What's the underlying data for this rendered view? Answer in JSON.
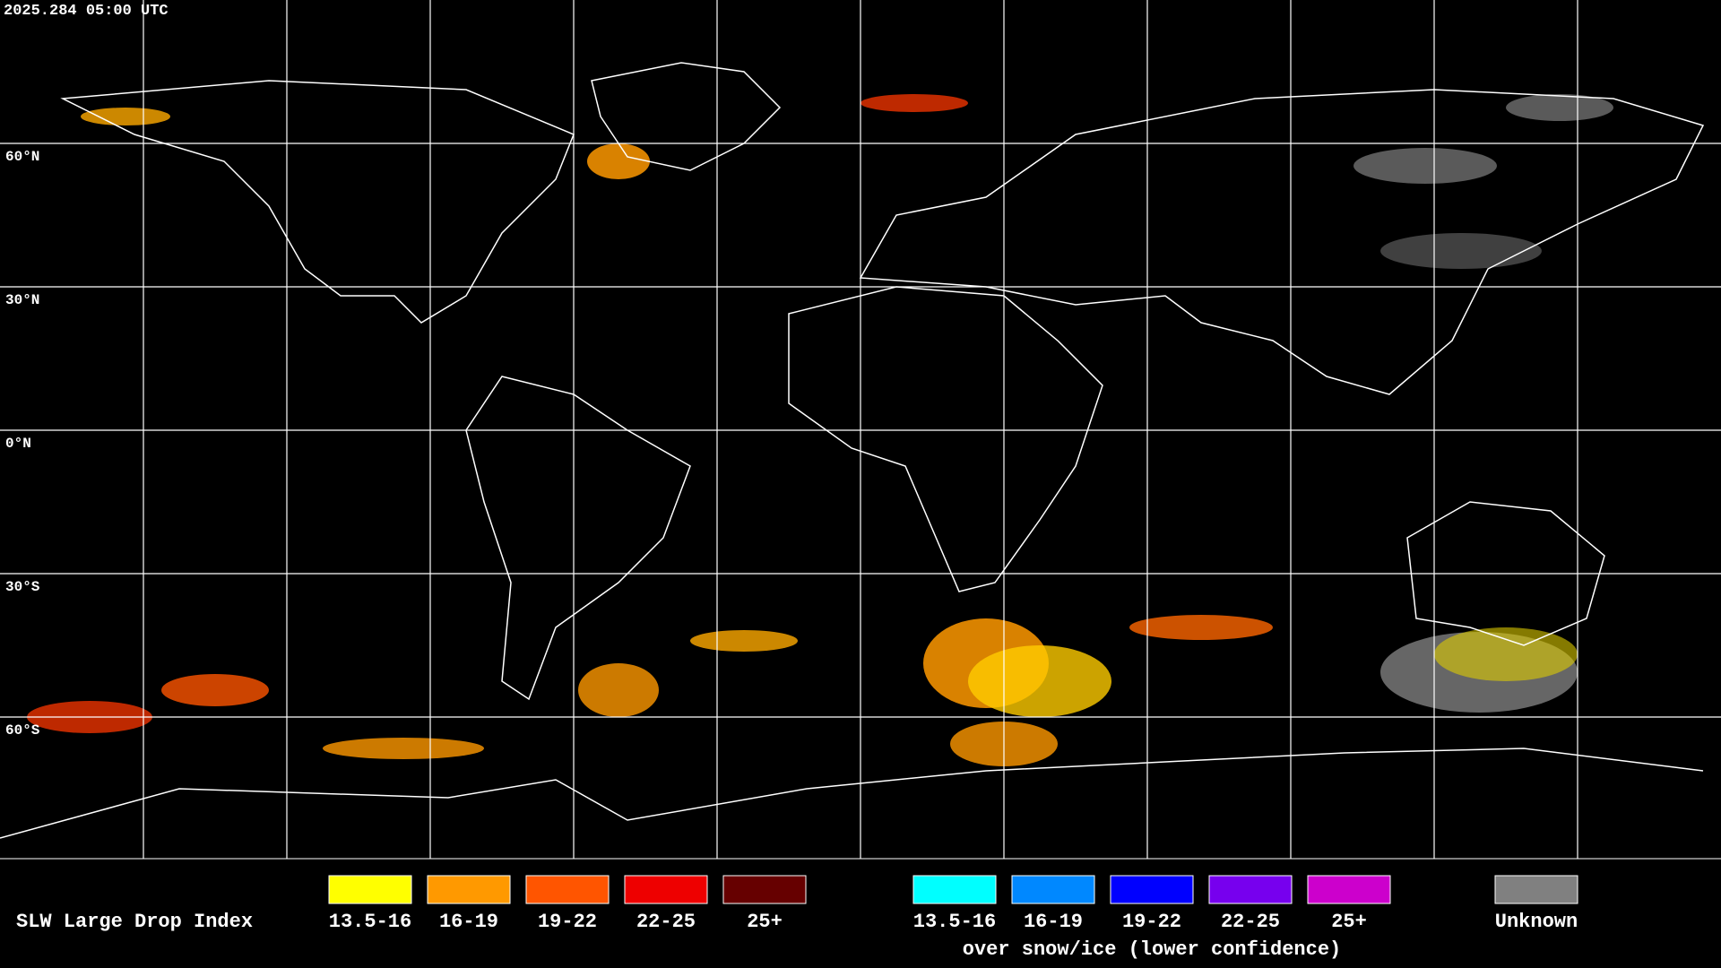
{
  "header": {
    "timestamp": "2025.284 05:00 UTC"
  },
  "map": {
    "lat_labels": [
      "60°N",
      "30°N",
      "0°N",
      "30°S",
      "60°S"
    ]
  },
  "legend": {
    "title": "SLW Large Drop Index",
    "groups": [
      {
        "items": [
          {
            "label": "13.5-16",
            "color": "#ffff00"
          },
          {
            "label": "16-19",
            "color": "#ff9900"
          },
          {
            "label": "19-22",
            "color": "#ff5500"
          },
          {
            "label": "22-25",
            "color": "#ee0000"
          },
          {
            "label": "25+",
            "color": "#660000"
          }
        ]
      },
      {
        "items": [
          {
            "label": "13.5-16",
            "color": "#00ffff"
          },
          {
            "label": "16-19",
            "color": "#0088ff"
          },
          {
            "label": "19-22",
            "color": "#0000ff"
          },
          {
            "label": "22-25",
            "color": "#7700ee"
          },
          {
            "label": "25+",
            "color": "#cc00cc"
          }
        ],
        "caption": "over snow/ice (lower confidence)"
      },
      {
        "items": [
          {
            "label": "Unknown",
            "color": "#808080"
          }
        ]
      }
    ]
  }
}
